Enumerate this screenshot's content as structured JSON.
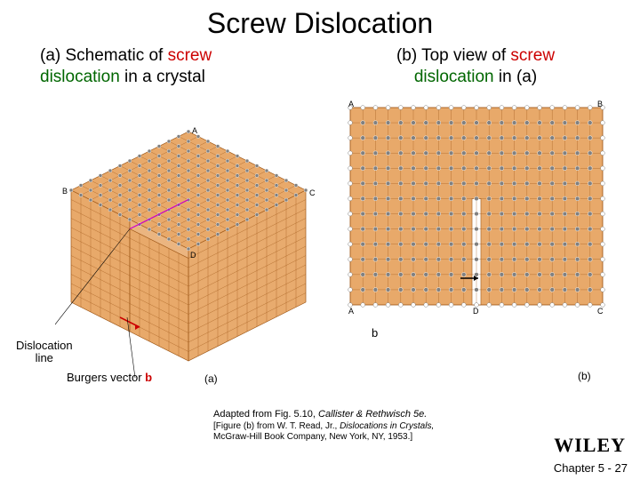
{
  "title": "Screw Dislocation",
  "caption_a_prefix": "(a) Schematic of ",
  "caption_a_kw1": "screw",
  "caption_a_kw2": "dislocation",
  "caption_a_suffix": " in a crystal",
  "caption_b_prefix": "(b) Top view of ",
  "caption_b_kw1": "screw",
  "caption_b_mid": "dislocation",
  "caption_b_suffix": " in (a)",
  "label_disloc_line_1": "Dislocation",
  "label_disloc_line_2": "line",
  "label_burgers_prefix": "Burgers vector ",
  "label_burgers_b": "b",
  "label_marker_a": "(a)",
  "label_marker_b": "(b)",
  "label_b_arrow": "b",
  "credit_line1_a": "Adapted from Fig. 5.10, ",
  "credit_line1_b": "Callister & Rethwisch 5e.",
  "credit_line2": "[Figure (b) from W. T. Read, Jr., ",
  "credit_line2_ital": "Dislocations in Crystals,",
  "credit_line3": "McGraw-Hill Book Company, New York, NY, 1953.]",
  "brand": "WILEY",
  "footer_label": "Chapter 5 -",
  "footer_page": "27",
  "figA": {
    "type": "diagram-isometric-lattice",
    "n_cells": 12,
    "face_fill": "#e8a96a",
    "grid_color": "#a05a1a",
    "background": "#ffffff",
    "step_depth_cells": 6,
    "burgers_arrow_color": "#cc0000",
    "dislocation_line_color": "#cc00cc",
    "atom_dot_radius": 2,
    "atom_dot_color": "#808080",
    "pt_A": "A",
    "pt_B": "B",
    "pt_C": "C",
    "pt_D": "D"
  },
  "figB": {
    "type": "diagram-top-lattice",
    "cols": 20,
    "rows": 13,
    "fill": "#e8a96a",
    "grid_color": "#a05a1a",
    "gap_col": 10,
    "atom_top_color": "#808080",
    "atom_bot_color": "#ffffff",
    "atom_bot_stroke": "#808080",
    "background": "#ffffff",
    "pt_A": "A",
    "pt_B": "B",
    "pt_C": "C",
    "pt_D": "D"
  }
}
